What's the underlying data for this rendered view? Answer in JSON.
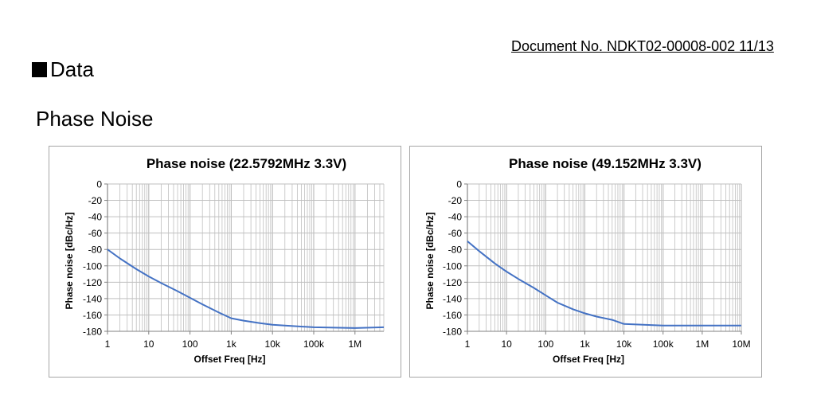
{
  "document_no": "Document No. NDKT02-00008-002 11/13",
  "section_title": "Data",
  "subtitle": "Phase Noise",
  "colors": {
    "line": "#4472c4",
    "grid": "#bfbfbf",
    "frame": "#a6a6a6"
  },
  "chart_data": [
    {
      "type": "line",
      "title": "Phase noise (22.5792MHz 3.3V)",
      "xlabel": "Offset Freq [Hz]",
      "ylabel": "Phase noise [dBc/Hz]",
      "x_scale": "log",
      "xlim": [
        1,
        5000000
      ],
      "ylim": [
        -180,
        0
      ],
      "grid": true,
      "x_tick_labels": [
        "1",
        "10",
        "100",
        "1k",
        "10k",
        "100k",
        "1M"
      ],
      "y_tick_labels": [
        "0",
        "-20",
        "-40",
        "-60",
        "-80",
        "-100",
        "-120",
        "-140",
        "-160",
        "-180"
      ],
      "series": [
        {
          "x": [
            1,
            2,
            5,
            10,
            20,
            50,
            100,
            200,
            500,
            1000,
            2000,
            5000,
            10000,
            20000,
            100000,
            1000000,
            5000000
          ],
          "values": [
            -80,
            -91,
            -104,
            -113,
            -121,
            -131,
            -139,
            -147,
            -157,
            -164,
            -167,
            -170,
            -172,
            -173,
            -175,
            -176,
            -175
          ]
        }
      ]
    },
    {
      "type": "line",
      "title": "Phase noise (49.152MHz 3.3V)",
      "xlabel": "Offset Freq [Hz]",
      "ylabel": "Phase noise [dBc/Hz]",
      "x_scale": "log",
      "xlim": [
        1,
        10000000
      ],
      "ylim": [
        -180,
        0
      ],
      "grid": true,
      "x_tick_labels": [
        "1",
        "10",
        "100",
        "1k",
        "10k",
        "100k",
        "1M",
        "10M"
      ],
      "y_tick_labels": [
        "0",
        "-20",
        "-40",
        "-60",
        "-80",
        "-100",
        "-120",
        "-140",
        "-160",
        "-180"
      ],
      "series": [
        {
          "x": [
            1,
            2,
            5,
            10,
            20,
            50,
            100,
            200,
            500,
            1000,
            2000,
            5000,
            10000,
            100000,
            1000000,
            10000000
          ],
          "values": [
            -70,
            -82,
            -97,
            -107,
            -116,
            -127,
            -136,
            -145,
            -153,
            -158,
            -162,
            -166,
            -171,
            -173,
            -173,
            -173
          ]
        }
      ]
    }
  ]
}
